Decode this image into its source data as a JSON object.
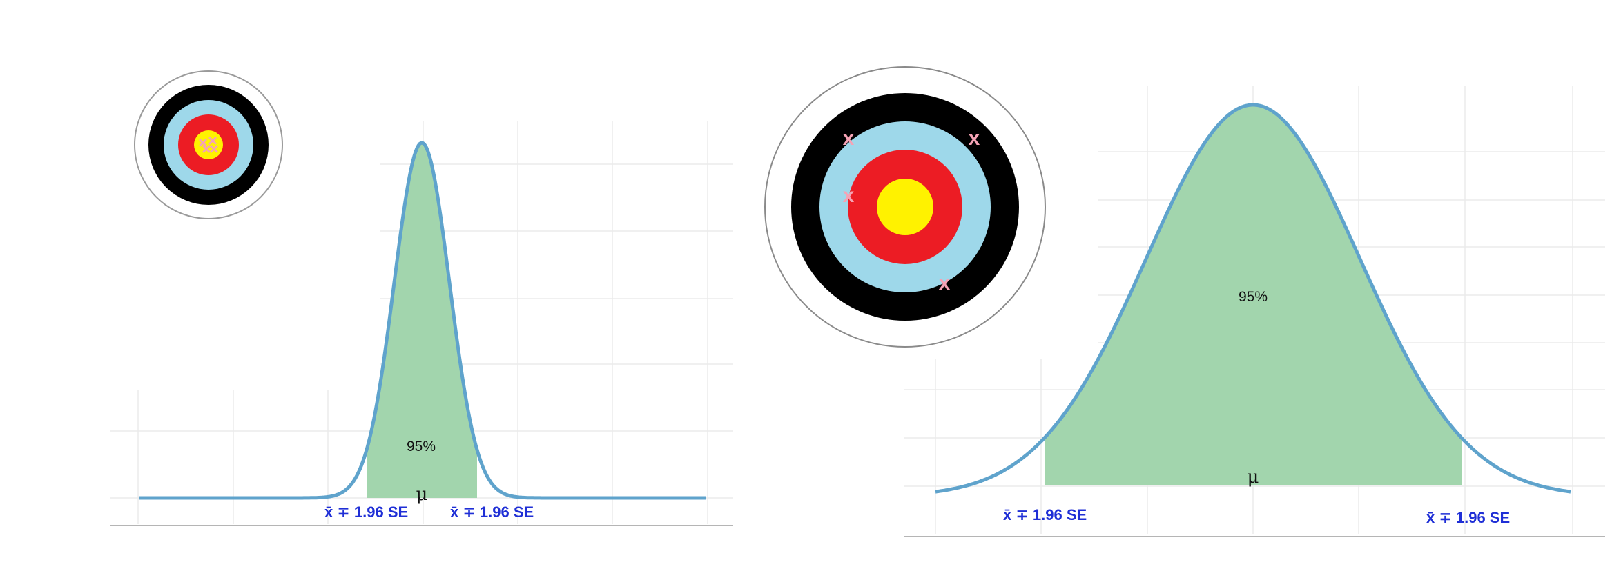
{
  "colors": {
    "curve": "#5fa3cc",
    "fill": "#a2d5ad",
    "ci_label": "#1f2fd6",
    "grid": "#ebebeb",
    "axis": "#b5b5b5",
    "target_white": "#ffffff",
    "target_black": "#000000",
    "target_blue": "#9ed8ea",
    "target_red": "#ec1c24",
    "target_yellow": "#fff200",
    "hit_mark": "#f5a3b5"
  },
  "left_panel": {
    "percent_label": "95%",
    "mean_label": "μ",
    "lower_label": "x̄ ∓ 1.96 SE",
    "upper_label": "x̄ ∓ 1.96 SE",
    "target_hits": []
  },
  "right_panel": {
    "percent_label": "95%",
    "mean_label": "μ",
    "lower_label": "x̄ ∓ 1.96 SE",
    "upper_label": "x̄ ∓ 1.96 SE",
    "hit_mark": "x",
    "target_hits_count": 4
  }
}
